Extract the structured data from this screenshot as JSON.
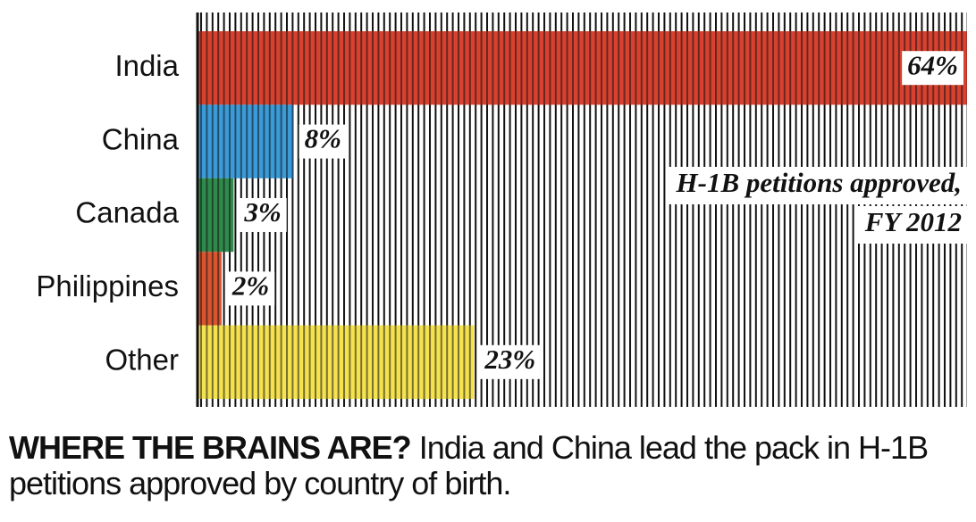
{
  "chart_data": {
    "type": "hbar",
    "categories": [
      "India",
      "China",
      "Canada",
      "Philippines",
      "Other"
    ],
    "values": [
      64,
      8,
      3,
      2,
      23
    ],
    "value_labels": [
      "64%",
      "8%",
      "3%",
      "2%",
      "23%"
    ],
    "colors": [
      "#d8412f",
      "#3b9bd8",
      "#2f8a4b",
      "#d9552f",
      "#f4e24f"
    ],
    "annotation": [
      "H-1B petitions approved,",
      "FY 2012"
    ],
    "caption_title": "WHERE THE BRAINS ARE?",
    "caption": "India and China lead the pack in H-1B petitions approved by country of birth."
  }
}
